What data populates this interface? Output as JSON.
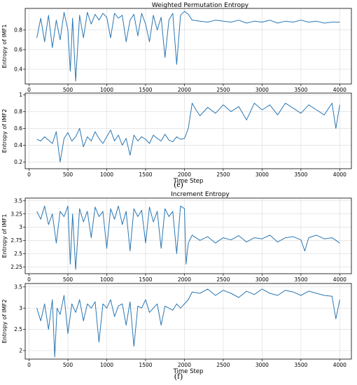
{
  "colors": {
    "line": "#2a77b4",
    "grid": "#d9d9d9",
    "axis": "#000000"
  },
  "figure": {
    "top_title": "Weighted Permutation Entropy",
    "bottom_title": "Increment Entropy",
    "captions": [
      "(e)",
      "(f)"
    ]
  },
  "chart_data": [
    {
      "type": "line",
      "title": "Weighted Permutation Entropy",
      "xlabel": "",
      "ylabel": "Entropy of IMF1",
      "xlim": [
        -50,
        4150
      ],
      "ylim": [
        0.25,
        1.02
      ],
      "xticks": [
        0,
        500,
        1000,
        1500,
        2000,
        2500,
        3000,
        3500,
        4000
      ],
      "yticks": [
        0.4,
        0.6,
        0.8
      ],
      "grid": true,
      "series": [
        {
          "x": [
            100,
            150,
            200,
            250,
            300,
            350,
            400,
            450,
            500,
            530,
            560,
            600,
            650,
            700,
            750,
            800,
            850,
            900,
            950,
            1000,
            1050,
            1100,
            1150,
            1200,
            1250,
            1300,
            1350,
            1400,
            1450,
            1500,
            1550,
            1600,
            1650,
            1700,
            1750,
            1800,
            1850,
            1900,
            1950,
            2000,
            2050,
            2100,
            2200,
            2300,
            2400,
            2500,
            2600,
            2700,
            2800,
            2900,
            3000,
            3100,
            3200,
            3300,
            3400,
            3500,
            3600,
            3700,
            3800,
            3900,
            4000
          ],
          "y": [
            0.72,
            0.92,
            0.68,
            0.95,
            0.62,
            0.9,
            0.7,
            0.98,
            0.8,
            0.38,
            0.92,
            0.28,
            0.95,
            0.72,
            0.98,
            0.86,
            0.96,
            0.9,
            0.97,
            0.93,
            0.72,
            0.97,
            0.92,
            0.95,
            0.68,
            0.9,
            0.96,
            0.74,
            0.97,
            0.86,
            0.68,
            0.95,
            0.8,
            0.93,
            0.52,
            0.9,
            0.97,
            0.45,
            0.95,
            0.99,
            0.96,
            0.9,
            0.89,
            0.88,
            0.9,
            0.89,
            0.88,
            0.9,
            0.87,
            0.89,
            0.88,
            0.9,
            0.87,
            0.89,
            0.88,
            0.9,
            0.88,
            0.89,
            0.87,
            0.88,
            0.88
          ]
        }
      ]
    },
    {
      "type": "line",
      "title": "",
      "xlabel": "Time Step",
      "ylabel": "Entropy of IMF2",
      "xlim": [
        -50,
        4150
      ],
      "ylim": [
        0.12,
        1.02
      ],
      "xticks": [
        0,
        500,
        1000,
        1500,
        2000,
        2500,
        3000,
        3500,
        4000
      ],
      "yticks": [
        0.2,
        0.4,
        0.6,
        0.8,
        1.0
      ],
      "grid": true,
      "series": [
        {
          "x": [
            100,
            150,
            200,
            250,
            300,
            350,
            400,
            450,
            500,
            550,
            600,
            650,
            700,
            750,
            800,
            850,
            900,
            950,
            1000,
            1050,
            1100,
            1150,
            1200,
            1250,
            1300,
            1350,
            1400,
            1450,
            1500,
            1550,
            1600,
            1650,
            1700,
            1750,
            1800,
            1850,
            1900,
            1950,
            2000,
            2050,
            2100,
            2150,
            2200,
            2300,
            2400,
            2500,
            2600,
            2700,
            2800,
            2900,
            3000,
            3100,
            3200,
            3300,
            3400,
            3500,
            3600,
            3700,
            3800,
            3900,
            3950,
            4000
          ],
          "y": [
            0.47,
            0.45,
            0.5,
            0.46,
            0.42,
            0.56,
            0.2,
            0.48,
            0.55,
            0.45,
            0.5,
            0.6,
            0.38,
            0.5,
            0.45,
            0.56,
            0.48,
            0.42,
            0.5,
            0.58,
            0.45,
            0.52,
            0.4,
            0.48,
            0.28,
            0.52,
            0.45,
            0.5,
            0.47,
            0.42,
            0.52,
            0.48,
            0.45,
            0.53,
            0.46,
            0.44,
            0.5,
            0.47,
            0.48,
            0.6,
            0.9,
            0.82,
            0.75,
            0.85,
            0.78,
            0.88,
            0.8,
            0.86,
            0.7,
            0.9,
            0.82,
            0.88,
            0.76,
            0.9,
            0.84,
            0.78,
            0.88,
            0.82,
            0.76,
            0.9,
            0.6,
            0.88
          ]
        }
      ]
    },
    {
      "type": "line",
      "title": "Increment Entropy",
      "xlabel": "",
      "ylabel": "Entropy of IMF1",
      "xlim": [
        -50,
        4150
      ],
      "ylim": [
        2.12,
        3.55
      ],
      "xticks": [
        0,
        500,
        1000,
        1500,
        2000,
        2500,
        3000,
        3500,
        4000
      ],
      "yticks": [
        2.25,
        2.5,
        2.75,
        3.0,
        3.25,
        3.5
      ],
      "grid": true,
      "series": [
        {
          "x": [
            100,
            150,
            200,
            250,
            300,
            350,
            400,
            450,
            500,
            530,
            560,
            600,
            650,
            700,
            750,
            800,
            850,
            900,
            950,
            1000,
            1050,
            1100,
            1150,
            1200,
            1250,
            1300,
            1350,
            1400,
            1450,
            1500,
            1550,
            1600,
            1650,
            1700,
            1750,
            1800,
            1850,
            1900,
            1950,
            2000,
            2020,
            2050,
            2100,
            2200,
            2300,
            2400,
            2500,
            2600,
            2700,
            2800,
            2900,
            3000,
            3100,
            3200,
            3300,
            3400,
            3500,
            3550,
            3600,
            3700,
            3800,
            3900,
            4000
          ],
          "y": [
            3.3,
            3.15,
            3.4,
            3.05,
            3.25,
            2.7,
            3.3,
            3.2,
            3.4,
            2.3,
            3.25,
            2.2,
            3.35,
            3.1,
            3.3,
            2.8,
            3.38,
            3.2,
            3.3,
            2.6,
            3.35,
            3.15,
            3.4,
            3.05,
            3.3,
            2.55,
            3.35,
            3.2,
            3.32,
            2.7,
            3.38,
            3.1,
            3.3,
            2.6,
            3.35,
            3.2,
            3.3,
            2.5,
            3.4,
            3.35,
            2.3,
            2.7,
            2.85,
            2.75,
            2.82,
            2.7,
            2.8,
            2.76,
            2.84,
            2.72,
            2.8,
            2.78,
            2.85,
            2.72,
            2.8,
            2.82,
            2.76,
            2.55,
            2.8,
            2.85,
            2.78,
            2.8,
            2.7
          ]
        }
      ]
    },
    {
      "type": "line",
      "title": "",
      "xlabel": "Time Step",
      "ylabel": "Entropy of IMF2",
      "xlim": [
        -50,
        4150
      ],
      "ylim": [
        1.8,
        3.58
      ],
      "xticks": [
        0,
        500,
        1000,
        1500,
        2000,
        2500,
        3000,
        3500,
        4000
      ],
      "yticks": [
        2.0,
        2.5,
        3.0,
        3.5
      ],
      "grid": true,
      "series": [
        {
          "x": [
            100,
            150,
            200,
            250,
            300,
            330,
            360,
            400,
            450,
            500,
            550,
            600,
            650,
            700,
            750,
            800,
            850,
            900,
            950,
            1000,
            1050,
            1100,
            1150,
            1200,
            1250,
            1300,
            1350,
            1400,
            1450,
            1500,
            1550,
            1600,
            1650,
            1700,
            1750,
            1800,
            1850,
            1900,
            1950,
            2000,
            2050,
            2100,
            2200,
            2300,
            2400,
            2500,
            2600,
            2700,
            2800,
            2900,
            3000,
            3100,
            3200,
            3300,
            3400,
            3500,
            3600,
            3700,
            3800,
            3900,
            3950,
            4000
          ],
          "y": [
            3.0,
            2.7,
            3.1,
            2.5,
            3.2,
            1.85,
            3.0,
            2.85,
            3.3,
            2.4,
            3.1,
            2.9,
            3.2,
            2.7,
            3.1,
            3.0,
            3.15,
            2.2,
            3.1,
            3.0,
            3.2,
            2.8,
            3.05,
            3.1,
            2.6,
            3.15,
            2.1,
            3.05,
            3.0,
            3.2,
            2.9,
            3.0,
            3.1,
            2.6,
            3.05,
            3.0,
            2.95,
            3.1,
            3.0,
            3.1,
            3.2,
            3.38,
            3.35,
            3.45,
            3.3,
            3.42,
            3.35,
            3.25,
            3.4,
            3.32,
            3.45,
            3.35,
            3.3,
            3.42,
            3.38,
            3.3,
            3.4,
            3.35,
            3.3,
            3.28,
            2.75,
            3.2
          ]
        }
      ]
    }
  ]
}
